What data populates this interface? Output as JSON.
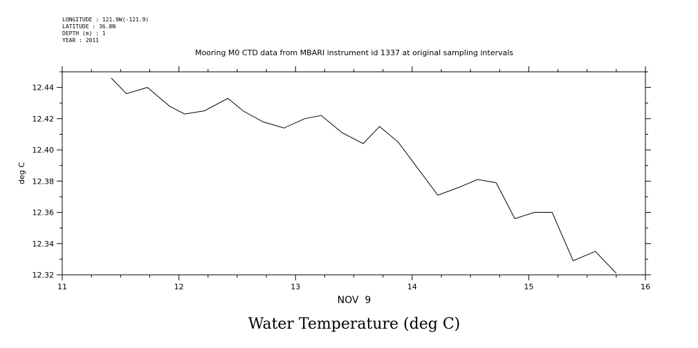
{
  "meta": {
    "longitude": "LONGITUDE : 121.9W(-121.9)",
    "latitude": "LATITUDE : 36.8N",
    "depth": "DEPTH (m) : 1",
    "year": "YEAR : 2011"
  },
  "chart_data": {
    "type": "line",
    "title": "Mooring M0 CTD data from MBARI instrument id 1337 at original sampling intervals",
    "subtitle": "Water Temperature (deg C)",
    "xlabel": "NOV  9",
    "ylabel": "deg C",
    "xlim": [
      11,
      16
    ],
    "ylim": [
      12.32,
      12.45
    ],
    "x_ticks": [
      "11",
      "12",
      "13",
      "14",
      "15",
      "16"
    ],
    "y_ticks": [
      "12.32",
      "12.34",
      "12.36",
      "12.38",
      "12.40",
      "12.42",
      "12.44"
    ],
    "grid": false,
    "series": [
      {
        "x": [
          11.42,
          11.55,
          11.73,
          11.92,
          12.05,
          12.22,
          12.42,
          12.55,
          12.72,
          12.9,
          13.08,
          13.22,
          13.4,
          13.58,
          13.72,
          13.88,
          14.05,
          14.22,
          14.4,
          14.56,
          14.72,
          14.88,
          15.05,
          15.2,
          15.38,
          15.57,
          15.75
        ],
        "y": [
          12.446,
          12.436,
          12.44,
          12.428,
          12.423,
          12.425,
          12.433,
          12.425,
          12.418,
          12.414,
          12.42,
          12.422,
          12.411,
          12.404,
          12.415,
          12.405,
          12.388,
          12.371,
          12.376,
          12.381,
          12.379,
          12.356,
          12.36,
          12.36,
          12.329,
          12.335,
          12.321
        ]
      }
    ]
  }
}
